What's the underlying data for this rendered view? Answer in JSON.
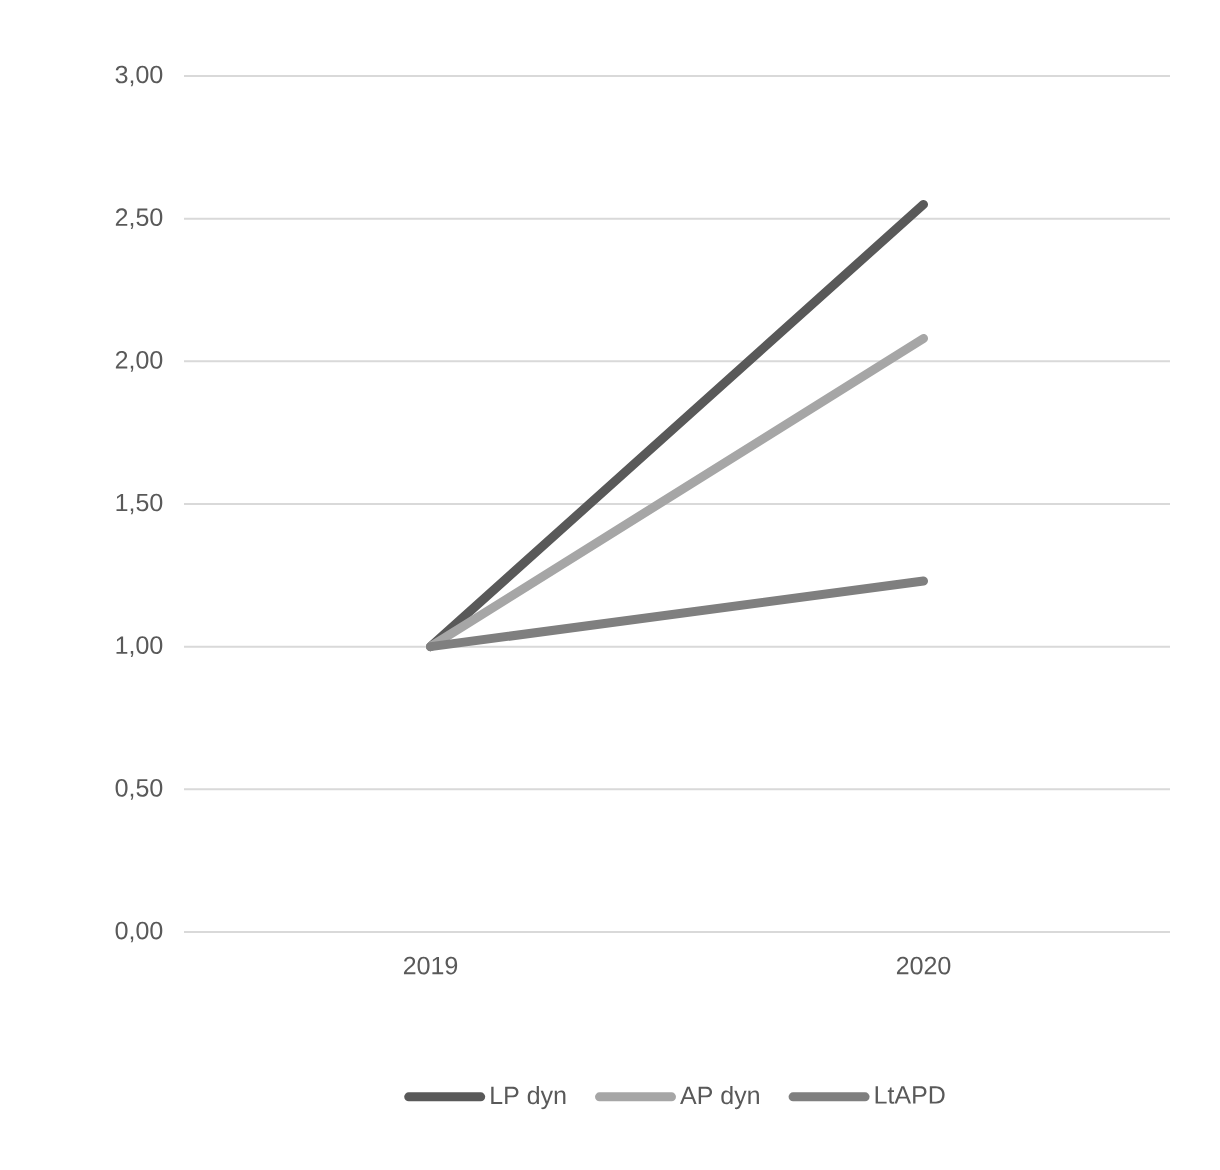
{
  "chart_data": {
    "type": "line",
    "categories": [
      "2019",
      "2020"
    ],
    "series": [
      {
        "name": "LP dyn",
        "color": "#595959",
        "values": [
          1.0,
          2.55
        ]
      },
      {
        "name": "AP dyn",
        "color": "#a6a6a6",
        "values": [
          1.0,
          2.08
        ]
      },
      {
        "name": "LtAPD",
        "color": "#7f7f7f",
        "values": [
          1.0,
          1.23
        ]
      }
    ],
    "ylim": [
      0,
      3
    ],
    "yticks": [
      {
        "value": 0,
        "label": "0,00"
      },
      {
        "value": 0.5,
        "label": "0,50"
      },
      {
        "value": 1,
        "label": "1,00"
      },
      {
        "value": 1.5,
        "label": "1,50"
      },
      {
        "value": 2,
        "label": "2,00"
      },
      {
        "value": 2.5,
        "label": "2,50"
      },
      {
        "value": 3,
        "label": "3,00"
      }
    ],
    "grid": "y",
    "legend": "bottom",
    "marker": "none",
    "line_style": "solid"
  }
}
